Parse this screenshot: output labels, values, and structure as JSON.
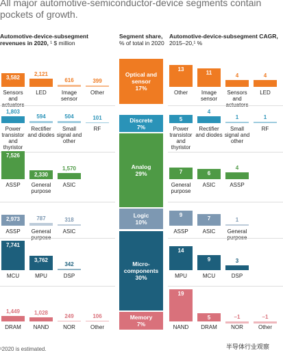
{
  "chart_data": {
    "type": "segment-bars",
    "title": "All major automotive-semiconductor-device segments contain pockets of growth.",
    "headers": {
      "revenue": {
        "bold": "Automotive-device-subsegment revenues in 2020,",
        "rest": "¹ $ million"
      },
      "share": {
        "bold": "Segment share,",
        "rest": "% of total in 2020"
      },
      "cagr": {
        "bold": "Automotive-device-subsegment CAGR,",
        "rest": "2015–20,¹ %"
      }
    },
    "segments": [
      {
        "name": "Optical and sensor",
        "share": 17,
        "share_label": "17%",
        "color": "#ef7b22",
        "light_color": "#f7b98a",
        "revenue": {
          "categories": [
            "Sensors and actuators",
            "LED",
            "Image sensor",
            "Other"
          ],
          "values": [
            3582,
            2121,
            616,
            399
          ],
          "value_labels": [
            "3,582",
            "2,121",
            "616",
            "399"
          ]
        },
        "cagr": {
          "categories": [
            "Other",
            "Image sensor",
            "Sensors and actuators",
            "LED"
          ],
          "values": [
            13,
            11,
            4,
            4
          ],
          "value_labels": [
            "13",
            "11",
            "4",
            "4"
          ]
        }
      },
      {
        "name": "Discrete",
        "share": 7,
        "share_label": "7%",
        "color": "#2a93b8",
        "light_color": "#9ccbde",
        "revenue": {
          "categories": [
            "Power transistor and thyristor",
            "Rectifier and diodes",
            "Small signal and other",
            "RF"
          ],
          "values": [
            1803,
            594,
            504,
            101
          ],
          "value_labels": [
            "1,803",
            "594",
            "504",
            "101"
          ]
        },
        "cagr": {
          "categories": [
            "Power transistor and thyristor",
            "Rectifier and diodes",
            "Small signal and other",
            "RF"
          ],
          "values": [
            5,
            4,
            1,
            1
          ],
          "value_labels": [
            "5",
            "4",
            "1",
            "1"
          ]
        }
      },
      {
        "name": "Analog",
        "share": 29,
        "share_label": "29%",
        "color": "#4e9a45",
        "light_color": "#a9d0a1",
        "revenue": {
          "categories": [
            "ASSP",
            "General purpose",
            "ASIC"
          ],
          "values": [
            7526,
            2330,
            1570
          ],
          "value_labels": [
            "7,526",
            "2,330",
            "1,570"
          ]
        },
        "cagr": {
          "categories": [
            "General purpose",
            "ASIC",
            "ASSP"
          ],
          "values": [
            7,
            6,
            4
          ],
          "value_labels": [
            "7",
            "6",
            "4"
          ]
        }
      },
      {
        "name": "Logic",
        "share": 10,
        "share_label": "10%",
        "color": "#7d98b2",
        "light_color": "#bccbd9",
        "revenue": {
          "categories": [
            "ASSP",
            "General purpose",
            "ASIC"
          ],
          "values": [
            2973,
            787,
            318
          ],
          "value_labels": [
            "2,973",
            "787",
            "318"
          ]
        },
        "cagr": {
          "categories": [
            "ASSP",
            "ASIC",
            "General purpose"
          ],
          "values": [
            9,
            7,
            1
          ],
          "value_labels": [
            "9",
            "7",
            "1"
          ]
        }
      },
      {
        "name": "Micro-components",
        "share": 30,
        "share_label": "30%",
        "color": "#1d5f7c",
        "light_color": "#8fb2c3",
        "revenue": {
          "categories": [
            "MCU",
            "MPU",
            "DSP"
          ],
          "values": [
            7741,
            3762,
            342
          ],
          "value_labels": [
            "7,741",
            "3,762",
            "342"
          ]
        },
        "cagr": {
          "categories": [
            "MPU",
            "MCU",
            "DSP"
          ],
          "values": [
            14,
            9,
            3
          ],
          "value_labels": [
            "14",
            "9",
            "3"
          ]
        }
      },
      {
        "name": "Memory",
        "share": 7,
        "share_label": "7%",
        "color": "#d9717b",
        "light_color": "#eeb6bb",
        "revenue": {
          "categories": [
            "DRAM",
            "NAND",
            "NOR",
            "Other"
          ],
          "values": [
            1449,
            1028,
            249,
            106
          ],
          "value_labels": [
            "1,449",
            "1,028",
            "249",
            "106"
          ]
        },
        "cagr": {
          "categories": [
            "NAND",
            "DRAM",
            "NOR",
            "Other"
          ],
          "values": [
            19,
            5,
            -1,
            -1
          ],
          "value_labels": [
            "19",
            "5",
            "–1",
            "–1"
          ]
        }
      }
    ],
    "footnote": "¹2020 is estimated.",
    "source": "半导体行业观察"
  }
}
